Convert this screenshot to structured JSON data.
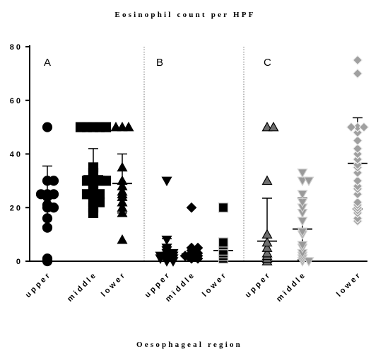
{
  "chart_data": {
    "type": "scatter",
    "title": "Eosinophil count per HPF",
    "xlabel": "Oesophageal region",
    "ylabel": "",
    "ylim": [
      0,
      80
    ],
    "yticks": [
      "0",
      "20",
      "40",
      "60",
      "80"
    ],
    "yticks_values": [
      0,
      20,
      40,
      60,
      80
    ],
    "grid": false,
    "legend": "none",
    "panels": [
      {
        "label": "A",
        "groups": [
          {
            "category": "upper",
            "marker": "circle",
            "fill": "#000000",
            "stroke": "#000000",
            "values": [
              0,
              0.5,
              1,
              12.5,
              16,
              20,
              20,
              21,
              24,
              25,
              25,
              25,
              30,
              30,
              50
            ],
            "mean": 24.3,
            "sd": 11.2
          },
          {
            "category": "middle",
            "marker": "square",
            "fill": "#000000",
            "stroke": "#000000",
            "values": [
              18,
              20,
              22,
              22,
              25,
              25,
              25,
              27,
              28,
              30,
              30,
              30,
              30,
              33,
              35,
              50,
              50,
              50,
              50,
              50
            ],
            "mean": 31.9,
            "sd": 10.1
          },
          {
            "category": "lower",
            "marker": "triangle-up",
            "fill": "#000000",
            "stroke": "#000000",
            "values": [
              8,
              18,
              20,
              22,
              24,
              25,
              26,
              28,
              30,
              35,
              50,
              50,
              50
            ],
            "mean": 29,
            "sd": 11
          }
        ]
      },
      {
        "label": "B",
        "groups": [
          {
            "category": "upper",
            "marker": "triangle-down",
            "fill": "#000000",
            "stroke": "#000000",
            "values": [
              0,
              0,
              0.5,
              1,
              1,
              1,
              1.5,
              2,
              2,
              2,
              3,
              3,
              4,
              5,
              8,
              30
            ],
            "mean": 2.9,
            "sd": 5.5
          },
          {
            "category": "middle",
            "marker": "diamond",
            "fill": "#000000",
            "stroke": "#000000",
            "values": [
              1,
              1,
              1.5,
              2,
              2,
              2,
              3,
              3,
              4,
              5,
              5,
              20
            ],
            "mean": 2.8,
            "sd": 2.3
          },
          {
            "category": "lower",
            "marker": "square",
            "fill": "#000000",
            "stroke": "#c8c8c8",
            "values": [
              1,
              2,
              3,
              4,
              6,
              7,
              20
            ],
            "mean": 4,
            "sd": 2.5
          }
        ]
      },
      {
        "label": "C",
        "groups": [
          {
            "category": "upper",
            "marker": "triangle-up",
            "fill": "#6e6e6e",
            "stroke": "#000000",
            "values": [
              0,
              1,
              2,
              3,
              5,
              7,
              10,
              30,
              50,
              50
            ],
            "mean": 7.5,
            "sd": 16
          },
          {
            "category": "middle",
            "marker": "triangle-down",
            "fill": "#9a9a9a",
            "stroke": "#d0d0d0",
            "values": [
              0,
              0,
              1,
              2,
              3,
              5,
              6,
              10,
              11,
              15,
              18,
              20,
              22,
              25,
              30,
              30,
              33
            ],
            "mean": 12,
            "sd": 11.5
          },
          {
            "category": "lower",
            "marker": "diamond",
            "fill": "#a0a0a0",
            "stroke": "#f0f0f0",
            "values": [
              15,
              16,
              18,
              19,
              20,
              21,
              22,
              25,
              27,
              28,
              30,
              33,
              35,
              36,
              38,
              40,
              42,
              45,
              48,
              50,
              50,
              50,
              70,
              75
            ],
            "mean": 36.5,
            "sd": 17
          }
        ]
      }
    ]
  }
}
